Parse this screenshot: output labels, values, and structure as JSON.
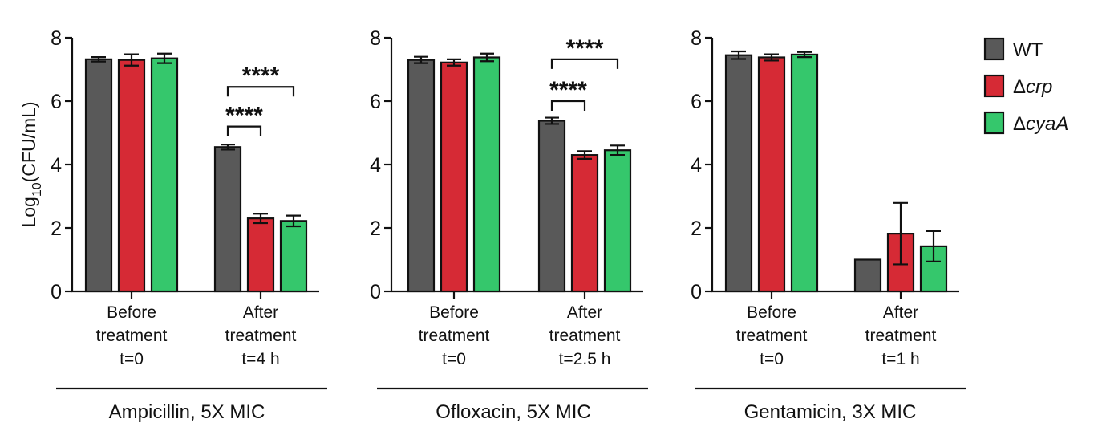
{
  "chart_data": {
    "type": "bar",
    "ylabel": "Log",
    "ylabel_subscript": "10",
    "ylabel_suffix": "(CFU/mL)",
    "ylim": [
      0,
      8
    ],
    "yticks": [
      "0",
      "2",
      "4",
      "6",
      "8"
    ],
    "legend": {
      "placement": "top-right",
      "items": [
        {
          "prefix": "",
          "name": "WT",
          "color": "#595959"
        },
        {
          "prefix": "Δ",
          "name": "crp",
          "color": "#d62a35"
        },
        {
          "prefix": "Δ",
          "name": "cyaA",
          "color": "#35c76c"
        }
      ]
    },
    "panels": [
      {
        "title": "Ampicillin, 5X MIC",
        "groups": [
          {
            "lines": [
              "Before",
              "treatment",
              "t=0"
            ],
            "values": [
              7.32,
              7.3,
              7.35
            ],
            "errors": [
              0.07,
              0.18,
              0.15
            ]
          },
          {
            "lines": [
              "After",
              "treatment",
              "t=4 h"
            ],
            "values": [
              4.55,
              2.3,
              2.22
            ],
            "errors": [
              0.08,
              0.15,
              0.17
            ]
          }
        ],
        "significance": [
          {
            "label": "****",
            "group": 1,
            "from": 0,
            "to": 1,
            "y": 5.2
          },
          {
            "label": "****",
            "group": 1,
            "from": 0,
            "to": 2,
            "y": 6.45
          }
        ]
      },
      {
        "title": "Ofloxacin, 5X MIC",
        "groups": [
          {
            "lines": [
              "Before",
              "treatment",
              "t=0"
            ],
            "values": [
              7.3,
              7.22,
              7.38
            ],
            "errors": [
              0.1,
              0.1,
              0.12
            ]
          },
          {
            "lines": [
              "After",
              "treatment",
              "t=2.5 h"
            ],
            "values": [
              5.38,
              4.3,
              4.45
            ],
            "errors": [
              0.1,
              0.12,
              0.15
            ]
          }
        ],
        "significance": [
          {
            "label": "****",
            "group": 1,
            "from": 0,
            "to": 1,
            "y": 6.0
          },
          {
            "label": "****",
            "group": 1,
            "from": 0,
            "to": 2,
            "y": 7.32
          }
        ]
      },
      {
        "title": "Gentamicin, 3X MIC",
        "groups": [
          {
            "lines": [
              "Before",
              "treatment",
              "t=0"
            ],
            "values": [
              7.45,
              7.38,
              7.47
            ],
            "errors": [
              0.12,
              0.1,
              0.08
            ]
          },
          {
            "lines": [
              "After",
              "treatment",
              "t=1 h"
            ],
            "values": [
              1.0,
              1.82,
              1.42
            ],
            "errors": [
              0.0,
              0.97,
              0.48
            ]
          }
        ],
        "significance": []
      }
    ]
  }
}
